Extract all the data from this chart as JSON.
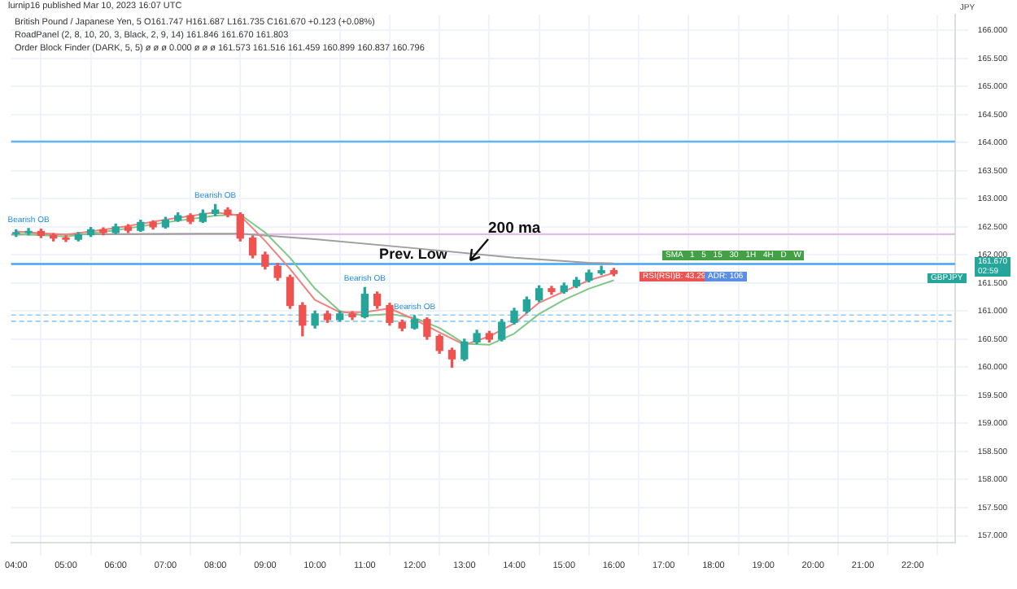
{
  "chart_data": {
    "type": "candlestick",
    "title": "British Pound / Japanese Yen, 5  O161.747 H161.687 L161.735 C161.670 +0.123 (+0.08%)",
    "subtitle": "lurnip16 published Mar 10, 2023 16:07 UTC",
    "ylabel": "JPY",
    "annotations": [
      "RoadPanel (2, 8, 10, 20, 3, Black, 2, 9, 14) 161.846 161.670 161.803",
      "Order Block Finder (DARK, 5, 5) ø ø ø 0.000 ø ø ø 161.573 161.516 161.459 160.899 160.837 160.796",
      "161.670",
      "02:59",
      "GBPJPY",
      "200 ma",
      "SMA 1 5 15 30 1H 4H D W",
      "RSI(RSI)B: 43.29",
      "ADR: 106",
      {
        "text": "Bearish OB",
        "x": 4.25,
        "y": 162.47
      },
      {
        "text": "Bearish OB",
        "x": 8.0,
        "y": 162.9
      },
      {
        "text": "Bearish OB",
        "x": 11.0,
        "y": 161.42
      },
      {
        "text": "Bearish OB",
        "x": 12.0,
        "y": 160.92
      }
    ],
    "x": [
      4,
      4.25,
      4.5,
      4.75,
      5,
      5.25,
      5.5,
      5.75,
      6,
      6.25,
      6.5,
      6.75,
      7,
      7.25,
      7.5,
      7.75,
      8,
      8.25,
      8.5,
      8.75,
      9,
      9.25,
      9.5,
      9.75,
      10,
      10.25,
      10.5,
      10.75,
      11,
      11.25,
      11.5,
      11.75,
      12,
      12.25,
      12.5,
      12.75,
      13,
      13.25,
      13.5,
      13.75,
      14,
      14.25,
      14.5,
      14.75,
      15,
      15.25,
      15.5,
      15.75,
      16
    ],
    "ohlc": [
      [
        162.38,
        162.45,
        162.33,
        162.4
      ],
      [
        162.4,
        162.47,
        162.36,
        162.42
      ],
      [
        162.42,
        162.46,
        162.31,
        162.35
      ],
      [
        162.35,
        162.38,
        162.25,
        162.3
      ],
      [
        162.3,
        162.34,
        162.24,
        162.28
      ],
      [
        162.28,
        162.4,
        162.25,
        162.36
      ],
      [
        162.36,
        162.49,
        162.33,
        162.45
      ],
      [
        162.45,
        162.48,
        162.36,
        162.4
      ],
      [
        162.4,
        162.55,
        162.38,
        162.5
      ],
      [
        162.5,
        162.54,
        162.4,
        162.44
      ],
      [
        162.44,
        162.62,
        162.42,
        162.58
      ],
      [
        162.58,
        162.61,
        162.46,
        162.5
      ],
      [
        162.5,
        162.67,
        162.48,
        162.62
      ],
      [
        162.62,
        162.75,
        162.6,
        162.7
      ],
      [
        162.7,
        162.73,
        162.56,
        162.6
      ],
      [
        162.6,
        162.8,
        162.58,
        162.74
      ],
      [
        162.74,
        162.9,
        162.7,
        162.8
      ],
      [
        162.8,
        162.84,
        162.68,
        162.72
      ],
      [
        162.72,
        162.75,
        162.25,
        162.3
      ],
      [
        162.3,
        162.34,
        161.95,
        162.0
      ],
      [
        162.0,
        162.05,
        161.75,
        161.8
      ],
      [
        161.8,
        161.85,
        161.55,
        161.6
      ],
      [
        161.6,
        161.64,
        161.05,
        161.1
      ],
      [
        161.1,
        161.15,
        160.56,
        160.75
      ],
      [
        160.75,
        161.0,
        160.7,
        160.95
      ],
      [
        160.95,
        161.0,
        160.8,
        160.85
      ],
      [
        160.85,
        161.0,
        160.82,
        160.95
      ],
      [
        160.95,
        160.99,
        160.85,
        160.9
      ],
      [
        160.9,
        161.42,
        160.88,
        161.3
      ],
      [
        161.3,
        161.34,
        161.05,
        161.1
      ],
      [
        161.1,
        161.14,
        160.75,
        160.8
      ],
      [
        160.8,
        160.84,
        160.65,
        160.7
      ],
      [
        160.7,
        160.92,
        160.68,
        160.85
      ],
      [
        160.85,
        160.88,
        160.5,
        160.55
      ],
      [
        160.55,
        160.58,
        160.25,
        160.3
      ],
      [
        160.3,
        160.34,
        160.0,
        160.15
      ],
      [
        160.15,
        160.5,
        160.12,
        160.45
      ],
      [
        160.45,
        160.66,
        160.42,
        160.6
      ],
      [
        160.6,
        160.64,
        160.45,
        160.5
      ],
      [
        160.5,
        160.85,
        160.47,
        160.8
      ],
      [
        160.8,
        161.05,
        160.77,
        161.0
      ],
      [
        161.0,
        161.25,
        160.97,
        161.2
      ],
      [
        161.2,
        161.45,
        161.17,
        161.4
      ],
      [
        161.4,
        161.44,
        161.3,
        161.35
      ],
      [
        161.35,
        161.5,
        161.32,
        161.45
      ],
      [
        161.45,
        161.6,
        161.42,
        161.55
      ],
      [
        161.55,
        161.73,
        161.52,
        161.68
      ],
      [
        161.68,
        161.8,
        161.65,
        161.72
      ],
      [
        161.72,
        161.76,
        161.63,
        161.67
      ]
    ],
    "series": [
      {
        "type": "line",
        "color": "#f08080",
        "x": [
          4,
          5,
          6,
          7,
          8,
          8.5,
          9,
          9.5,
          10,
          10.5,
          11,
          11.5,
          12,
          12.5,
          13,
          13.5,
          14,
          14.5,
          15,
          15.5,
          16
        ],
        "values": [
          162.42,
          162.36,
          162.48,
          162.63,
          162.76,
          162.7,
          162.25,
          161.75,
          161.2,
          160.98,
          160.98,
          161.05,
          160.85,
          160.62,
          160.4,
          160.55,
          160.78,
          161.15,
          161.35,
          161.55,
          161.68
        ]
      },
      {
        "type": "line",
        "color": "#81c784",
        "x": [
          4,
          5,
          6,
          7,
          8,
          8.5,
          9,
          9.5,
          10,
          10.5,
          11,
          11.5,
          12,
          12.5,
          13,
          13.5,
          14,
          14.5,
          15,
          15.5,
          16
        ],
        "values": [
          162.38,
          162.33,
          162.44,
          162.58,
          162.7,
          162.72,
          162.4,
          161.95,
          161.4,
          161.0,
          160.92,
          160.95,
          160.88,
          160.7,
          160.42,
          160.4,
          160.6,
          160.95,
          161.2,
          161.4,
          161.55
        ]
      },
      {
        "type": "line",
        "color": "#9e9e9e",
        "x": [
          3.9,
          8,
          8.5,
          10,
          12,
          14,
          15.5,
          16
        ],
        "values": [
          162.36,
          162.38,
          162.38,
          162.28,
          162.12,
          161.95,
          161.86,
          161.85
        ]
      }
    ],
    "ref_lines": [
      {
        "axis": "y",
        "value": 164.02,
        "color": "#64b5f6"
      },
      {
        "axis": "y",
        "value": 162.37,
        "color": "#e1bee7"
      },
      {
        "axis": "y",
        "value": 161.84,
        "label": "Prev. Low",
        "color": "#42a5f5"
      },
      {
        "axis": "y",
        "value": 160.93,
        "color": "#90caf9",
        "line_style": "dashed"
      },
      {
        "axis": "y",
        "value": 160.82,
        "color": "#90caf9",
        "line_style": "dashed"
      }
    ],
    "xlim": [
      3.9,
      22.85
    ],
    "ylim": [
      156.88,
      166.28
    ],
    "xticks": [
      {
        "value": 4,
        "label": "04:00"
      },
      {
        "value": 5,
        "label": "05:00"
      },
      {
        "value": 6,
        "label": "06:00"
      },
      {
        "value": 7,
        "label": "07:00"
      },
      {
        "value": 8,
        "label": "08:00"
      },
      {
        "value": 9,
        "label": "09:00"
      },
      {
        "value": 10,
        "label": "10:00"
      },
      {
        "value": 11,
        "label": "11:00"
      },
      {
        "value": 12,
        "label": "12:00"
      },
      {
        "value": 13,
        "label": "13:00"
      },
      {
        "value": 14,
        "label": "14:00"
      },
      {
        "value": 15,
        "label": "15:00"
      },
      {
        "value": 16,
        "label": "16:00"
      },
      {
        "value": 17,
        "label": "17:00"
      },
      {
        "value": 18,
        "label": "18:00"
      },
      {
        "value": 19,
        "label": "19:00"
      },
      {
        "value": 20,
        "label": "20:00"
      },
      {
        "value": 21,
        "label": "21:00"
      },
      {
        "value": 22,
        "label": "22:00"
      }
    ],
    "yticks": [
      {
        "value": 157,
        "label": "157.000"
      },
      {
        "value": 157.5,
        "label": "157.500"
      },
      {
        "value": 158,
        "label": "158.000"
      },
      {
        "value": 158.5,
        "label": "158.500"
      },
      {
        "value": 159,
        "label": "159.000"
      },
      {
        "value": 159.5,
        "label": "159.500"
      },
      {
        "value": 160,
        "label": "160.000"
      },
      {
        "value": 160.5,
        "label": "160.500"
      },
      {
        "value": 161,
        "label": "161.000"
      },
      {
        "value": 161.5,
        "label": "161.500"
      },
      {
        "value": 162,
        "label": "162.000"
      },
      {
        "value": 162.5,
        "label": "162.500"
      },
      {
        "value": 163,
        "label": "163.000"
      },
      {
        "value": 163.5,
        "label": "163.500"
      },
      {
        "value": 164,
        "label": "164.000"
      },
      {
        "value": 164.5,
        "label": "164.500"
      },
      {
        "value": 165,
        "label": "165.000"
      },
      {
        "value": 165.5,
        "label": "165.500"
      },
      {
        "value": 166,
        "label": "166.000"
      }
    ],
    "grid": true
  }
}
